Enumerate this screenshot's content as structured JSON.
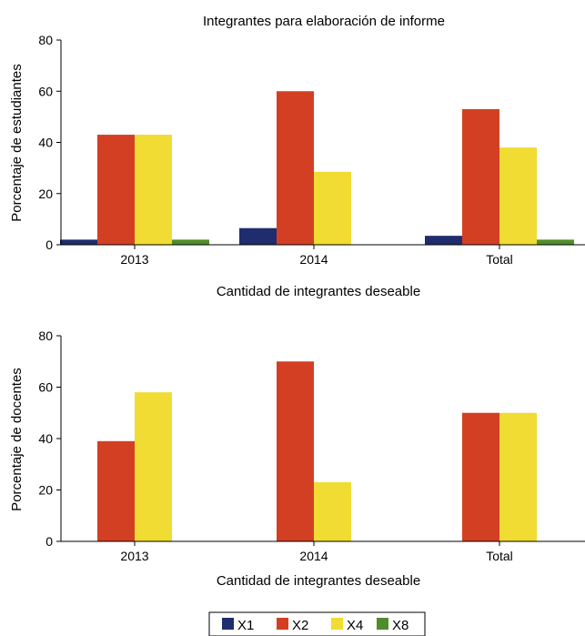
{
  "chart_data": [
    {
      "type": "bar",
      "title": "Integrantes para elaboración de informe",
      "xlabel": "Cantidad de integrantes deseable",
      "ylabel": "Porcentaje de estudiantes",
      "ylim": [
        0,
        80
      ],
      "yticks": [
        0,
        20,
        40,
        60,
        80
      ],
      "categories": [
        "2013",
        "2014",
        "Total"
      ],
      "series": [
        {
          "name": "X1",
          "values": [
            2,
            6.5,
            3.5
          ]
        },
        {
          "name": "X2",
          "values": [
            43,
            60,
            53
          ]
        },
        {
          "name": "X4",
          "values": [
            43,
            28.5,
            38
          ]
        },
        {
          "name": "X8",
          "values": [
            2,
            0,
            2
          ]
        }
      ]
    },
    {
      "type": "bar",
      "title": "",
      "xlabel": "Cantidad de integrantes deseable",
      "ylabel": "Porcentaje de docentes",
      "ylim": [
        0,
        80
      ],
      "yticks": [
        0,
        20,
        40,
        60,
        80
      ],
      "categories": [
        "2013",
        "2014",
        "Total"
      ],
      "series": [
        {
          "name": "X1",
          "values": [
            0,
            0,
            0
          ]
        },
        {
          "name": "X2",
          "values": [
            39,
            70,
            50
          ]
        },
        {
          "name": "X4",
          "values": [
            58,
            23,
            50
          ]
        },
        {
          "name": "X8",
          "values": [
            0,
            0,
            0
          ]
        }
      ]
    }
  ],
  "legend": {
    "position": "bottom-center",
    "items": [
      {
        "name": "X1",
        "color": "#1f2d6e"
      },
      {
        "name": "X2",
        "color": "#d33f23"
      },
      {
        "name": "X4",
        "color": "#f0dc33"
      },
      {
        "name": "X8",
        "color": "#4e8e2a"
      }
    ]
  },
  "colors": {
    "X1": "#1f2d6e",
    "X2": "#d33f23",
    "X4": "#f0dc33",
    "X8": "#4e8e2a"
  }
}
